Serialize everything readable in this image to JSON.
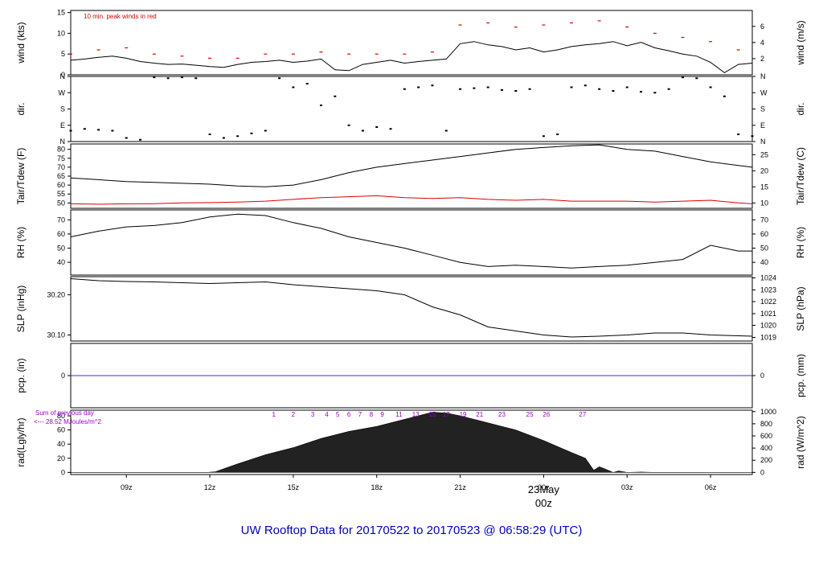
{
  "title": "UW Rooftop Data for 20170522  to  20170523 @ 06:58:29  (UTC)",
  "colors": {
    "line": "#000000",
    "accent": "#dd0000",
    "pcp": "#3333cc",
    "title": "#0000cc",
    "annotation": "#9900cc"
  },
  "chart_data": [
    {
      "id": "wind",
      "type": "line",
      "ylabel_left": "wind (kts)",
      "ylabel_right": "wind (m/s)",
      "ylim": [
        0,
        15.5
      ],
      "yticks_left": [
        "0",
        "5",
        "10",
        "15"
      ],
      "yticks_right": [
        {
          "value": 3.89,
          "label": "2"
        },
        {
          "value": 7.78,
          "label": "4"
        },
        {
          "value": 11.66,
          "label": "6"
        }
      ],
      "annotation": "10 min. peak winds in red",
      "series": [
        {
          "x": [
            0,
            0.5,
            1,
            1.5,
            2,
            2.5,
            3,
            3.5,
            4,
            4.5,
            5,
            5.5,
            6,
            6.5,
            7,
            7.5,
            8,
            8.5,
            9,
            9.5,
            10,
            10.5,
            11,
            11.5,
            12,
            12.5,
            13,
            13.5,
            14,
            14.5,
            15,
            15.5,
            16,
            16.5,
            17,
            17.5,
            18,
            18.5,
            19,
            19.5,
            20,
            20.5,
            21,
            21.5,
            22,
            22.5,
            23,
            23.5,
            24,
            24.5
          ],
          "y": [
            3.5,
            3.8,
            4.2,
            4.5,
            4.0,
            3.2,
            2.8,
            2.5,
            2.6,
            2.3,
            2.0,
            1.8,
            2.5,
            3.0,
            3.2,
            3.5,
            3.0,
            3.3,
            3.8,
            1.2,
            1.0,
            2.5,
            3.0,
            3.5,
            2.8,
            3.2,
            3.5,
            3.8,
            7.5,
            8.0,
            7.2,
            6.8,
            6.0,
            6.5,
            5.5,
            6.0,
            6.8,
            7.2,
            7.5,
            8.0,
            7.0,
            7.8,
            6.5,
            5.8,
            5.0,
            4.5,
            3.0,
            0.5,
            2.5,
            2.8
          ]
        }
      ],
      "peaks": {
        "x": [
          0,
          1,
          2,
          3,
          4,
          5,
          6,
          7,
          8,
          9,
          10,
          11,
          12,
          13,
          14,
          15,
          16,
          17,
          18,
          19,
          20,
          21,
          22,
          23,
          24
        ],
        "y": [
          5,
          6,
          6.5,
          5,
          4.5,
          4,
          4,
          5,
          5,
          5.5,
          5,
          5,
          5,
          5.5,
          12,
          12.5,
          11.5,
          12,
          12.5,
          13,
          11.5,
          10,
          9,
          8,
          6
        ]
      }
    },
    {
      "id": "dir",
      "type": "scatter",
      "ylabel_left": "dir.",
      "ylabel_right": "dir.",
      "ylim": [
        0,
        360
      ],
      "yticks_left": [
        "N",
        "E",
        "S",
        "W",
        "N"
      ],
      "yticks_right": [
        "N",
        "E",
        "S",
        "W",
        "N"
      ],
      "series": [
        {
          "x": [
            0,
            0.5,
            1,
            1.5,
            2,
            2.5,
            3,
            3.5,
            4,
            4.5,
            5,
            5.5,
            6,
            6.5,
            7,
            7.5,
            8,
            8.5,
            9,
            9.5,
            10,
            10.5,
            11,
            11.5,
            12,
            12.5,
            13,
            13.5,
            14,
            14.5,
            15,
            15.5,
            16,
            16.5,
            17,
            17.5,
            18,
            18.5,
            19,
            19.5,
            20,
            20.5,
            21,
            21.5,
            22,
            22.5,
            23,
            23.5,
            24,
            24.5
          ],
          "y": [
            60,
            70,
            65,
            60,
            20,
            10,
            355,
            350,
            355,
            350,
            40,
            20,
            30,
            45,
            60,
            350,
            300,
            320,
            200,
            250,
            90,
            60,
            80,
            70,
            290,
            300,
            310,
            60,
            290,
            295,
            300,
            285,
            280,
            290,
            30,
            40,
            300,
            310,
            290,
            280,
            300,
            275,
            270,
            290,
            355,
            350,
            300,
            250,
            40,
            30
          ]
        }
      ]
    },
    {
      "id": "temp",
      "type": "line",
      "ylabel_left": "Tair/Tdew (F)",
      "ylabel_right": "Tair/Tdew (C)",
      "ylim": [
        47,
        83
      ],
      "yticks_left": [
        "50",
        "55",
        "60",
        "65",
        "70",
        "75",
        "80"
      ],
      "yticks_right": [
        {
          "value": 50,
          "label": "10"
        },
        {
          "value": 59,
          "label": "15"
        },
        {
          "value": 68,
          "label": "20"
        },
        {
          "value": 77,
          "label": "25"
        }
      ],
      "series": [
        {
          "color": "#000000",
          "x": [
            0,
            1,
            2,
            3,
            4,
            5,
            6,
            7,
            8,
            9,
            10,
            11,
            12,
            13,
            14,
            15,
            16,
            17,
            18,
            19,
            20,
            21,
            22,
            23,
            24,
            24.5
          ],
          "y": [
            64,
            63,
            62,
            61.5,
            61,
            60.5,
            59.5,
            59,
            60,
            63,
            67,
            70,
            72,
            74,
            76,
            78,
            80,
            81,
            82,
            82.5,
            80,
            79,
            76,
            73,
            71,
            70
          ]
        },
        {
          "color": "#dd0000",
          "x": [
            0,
            1,
            2,
            3,
            4,
            5,
            6,
            7,
            8,
            9,
            10,
            11,
            12,
            13,
            14,
            15,
            16,
            17,
            18,
            19,
            20,
            21,
            22,
            23,
            24,
            24.5
          ],
          "y": [
            49.5,
            49.3,
            49.5,
            49.6,
            50,
            50.2,
            50.5,
            51,
            52,
            53,
            53.5,
            54,
            53,
            52.5,
            53,
            52,
            51.5,
            52,
            51,
            51,
            51,
            50.5,
            51,
            51.5,
            50,
            49.5
          ]
        }
      ]
    },
    {
      "id": "rh",
      "type": "line",
      "ylabel_left": "RH (%)",
      "ylabel_right": "RH (%)",
      "ylim": [
        31,
        77
      ],
      "yticks_left": [
        "40",
        "50",
        "60",
        "70"
      ],
      "yticks_right": [
        "40",
        "50",
        "60",
        "70"
      ],
      "series": [
        {
          "x": [
            0,
            1,
            2,
            3,
            4,
            5,
            6,
            7,
            8,
            9,
            10,
            11,
            12,
            13,
            14,
            15,
            16,
            17,
            18,
            19,
            20,
            21,
            22,
            23,
            24,
            24.5
          ],
          "y": [
            58,
            62,
            65,
            66,
            68,
            72,
            74,
            73,
            68,
            64,
            58,
            54,
            50,
            45,
            40,
            37,
            38,
            37,
            36,
            37,
            38,
            40,
            42,
            52,
            48,
            48
          ]
        }
      ]
    },
    {
      "id": "slp",
      "type": "line",
      "ylabel_left": "SLP (inHg)",
      "ylabel_right": "SLP (hPa)",
      "ylim": [
        30.085,
        30.245
      ],
      "yticks_left": [
        "30.10",
        "30.20"
      ],
      "yticks_right": [
        {
          "value": 30.094,
          "label": "1019"
        },
        {
          "value": 30.124,
          "label": "1020"
        },
        {
          "value": 30.153,
          "label": "1021"
        },
        {
          "value": 30.183,
          "label": "1022"
        },
        {
          "value": 30.212,
          "label": "1023"
        },
        {
          "value": 30.242,
          "label": "1024"
        }
      ],
      "series": [
        {
          "x": [
            0,
            1,
            2,
            3,
            4,
            5,
            6,
            7,
            8,
            9,
            10,
            11,
            12,
            13,
            14,
            15,
            16,
            17,
            18,
            19,
            20,
            21,
            22,
            23,
            24,
            24.5
          ],
          "y": [
            30.24,
            30.235,
            30.233,
            30.232,
            30.23,
            30.228,
            30.23,
            30.232,
            30.225,
            30.22,
            30.215,
            30.21,
            30.2,
            30.17,
            30.15,
            30.12,
            30.11,
            30.1,
            30.095,
            30.097,
            30.1,
            30.105,
            30.105,
            30.1,
            30.098,
            30.097
          ]
        }
      ]
    },
    {
      "id": "pcp",
      "type": "line",
      "ylabel_left": "pcp. (in)",
      "ylabel_right": "pcp. (mm)",
      "ylim": [
        -1,
        1
      ],
      "yticks_left": [
        "0"
      ],
      "yticks_right": [
        "0"
      ],
      "series": [
        {
          "x": [
            0,
            24.5
          ],
          "y": [
            0,
            0
          ]
        }
      ]
    },
    {
      "id": "rad",
      "type": "area",
      "ylabel_left": "rad(Lgly/hr)",
      "ylabel_right": "rad (W/m^2)",
      "ylim": [
        -3,
        88
      ],
      "yticks_left": [
        "0",
        "20",
        "40",
        "60",
        "80"
      ],
      "yticks_right": [
        {
          "value": 0,
          "label": "0"
        },
        {
          "value": 17.2,
          "label": "200"
        },
        {
          "value": 34.4,
          "label": "400"
        },
        {
          "value": 51.6,
          "label": "600"
        },
        {
          "value": 68.8,
          "label": "800"
        },
        {
          "value": 86,
          "label": "1000"
        }
      ],
      "annotation_lines": [
        "Sum of previous day",
        "<---  28.52 MJoules/m^2"
      ],
      "hour_labels": [
        "1",
        "2",
        "3",
        "4",
        "5",
        "6",
        "7",
        "8",
        "9",
        "11",
        "13",
        "15",
        "17",
        "19",
        "21",
        "23",
        "25",
        "26",
        "27"
      ],
      "hour_x": [
        7.3,
        8.0,
        8.7,
        9.2,
        9.6,
        10.0,
        10.4,
        10.8,
        11.2,
        11.8,
        12.4,
        13.0,
        13.5,
        14.1,
        14.7,
        15.5,
        16.5,
        17.1,
        18.4
      ],
      "series": [
        {
          "x": [
            0,
            4.9,
            5.2,
            6,
            7,
            8,
            9,
            10,
            11,
            12,
            13,
            13.5,
            14,
            15,
            16,
            17,
            18,
            18.5,
            18.8,
            19,
            19.2,
            19.5,
            19.7,
            20,
            20.5,
            21,
            24.5
          ],
          "y": [
            0,
            0,
            1,
            12,
            25,
            35,
            48,
            58,
            65,
            75,
            85,
            84,
            80,
            70,
            60,
            45,
            28,
            20,
            3,
            8,
            5,
            0,
            2,
            0,
            0.5,
            0,
            0
          ]
        }
      ]
    }
  ],
  "x_axis": {
    "range": [
      0,
      24.5
    ],
    "ticks": [
      {
        "value": 2,
        "label": "09z"
      },
      {
        "value": 5,
        "label": "12z"
      },
      {
        "value": 8,
        "label": "15z"
      },
      {
        "value": 11,
        "label": "18z"
      },
      {
        "value": 14,
        "label": "21z"
      },
      {
        "value": 17,
        "label": "00z"
      },
      {
        "value": 20,
        "label": "03z"
      },
      {
        "value": 23,
        "label": "06z"
      }
    ],
    "date_label": "23May",
    "date_label_z": "00z"
  }
}
